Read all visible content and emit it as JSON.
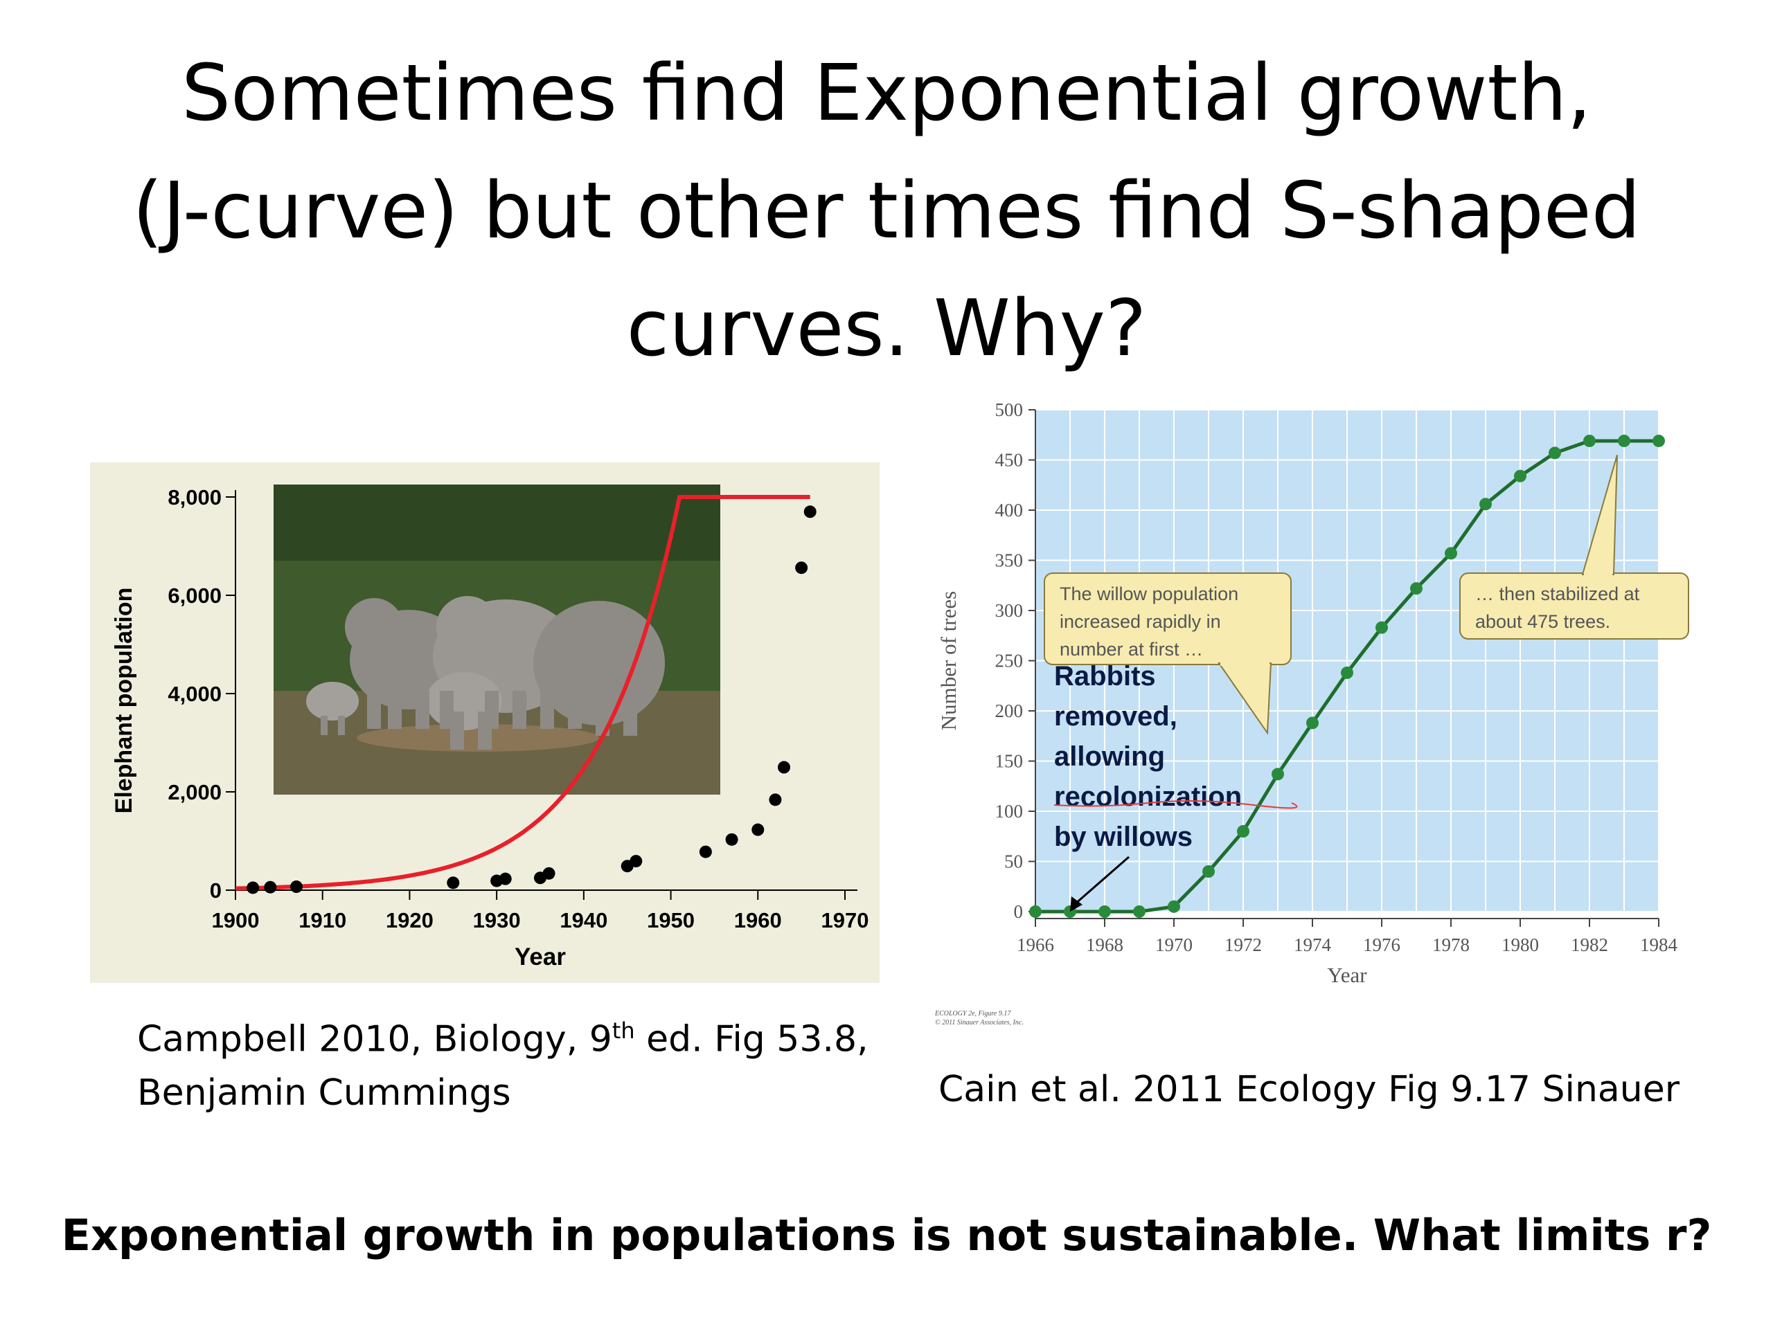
{
  "slide": {
    "title_lines": [
      "Sometimes find Exponential growth,",
      "(J-curve) but other times find S-shaped",
      "curves. Why?"
    ],
    "caption_left": {
      "line1_pre": "Campbell 2010, Biology, 9",
      "line1_sup": "th",
      "line1_post": " ed. Fig 53.8,",
      "line2": "Benjamin Cummings"
    },
    "caption_right": "Cain et al. 2011 Ecology Fig 9.17 Sinauer",
    "figure_credit_lines": [
      "ECOLOGY 2e, Figure 9.17",
      "© 2011 Sinauer Associates, Inc."
    ],
    "conclusion": "Exponential growth in populations is not sustainable.  What limits r?",
    "photo_description": "elephant-herd-photo"
  },
  "chart_data": [
    {
      "type": "scatter",
      "xlabel": "Year",
      "ylabel": "Elephant population",
      "xlim": [
        1900,
        1970
      ],
      "ylim": [
        0,
        8000
      ],
      "x_ticks": [
        "1900",
        "1910",
        "1920",
        "1930",
        "1940",
        "1950",
        "1960",
        "1970"
      ],
      "y_ticks": [
        "0",
        "2,000",
        "4,000",
        "6,000",
        "8,000"
      ],
      "series": [
        {
          "points": [
            [
              1902,
              50
            ],
            [
              1904,
              60
            ],
            [
              1907,
              70
            ],
            [
              1925,
              150
            ],
            [
              1930,
              190
            ],
            [
              1931,
              230
            ],
            [
              1935,
              250
            ],
            [
              1936,
              340
            ],
            [
              1945,
              490
            ],
            [
              1946,
              590
            ],
            [
              1954,
              780
            ],
            [
              1957,
              1030
            ],
            [
              1960,
              1230
            ],
            [
              1962,
              1840
            ],
            [
              1963,
              2500
            ],
            [
              1965,
              6560
            ],
            [
              1966,
              7700
            ]
          ]
        }
      ],
      "fit_curve_color": "#e8202a",
      "point_color": "#000000",
      "background_color": "#efeedd",
      "grid": false,
      "inset_photo": true
    },
    {
      "type": "line",
      "xlabel": "Year",
      "ylabel": "Number of trees",
      "xlim": [
        1966,
        1984
      ],
      "ylim": [
        0,
        500
      ],
      "x_ticks": [
        "1966",
        "1968",
        "1970",
        "1972",
        "1974",
        "1976",
        "1978",
        "1980",
        "1982",
        "1984"
      ],
      "y_ticks": [
        "0",
        "50",
        "100",
        "150",
        "200",
        "250",
        "300",
        "350",
        "400",
        "450",
        "500"
      ],
      "series": [
        {
          "x": [
            1966,
            1967,
            1968,
            1969,
            1970,
            1971,
            1972,
            1973,
            1974,
            1975,
            1976,
            1977,
            1978,
            1979,
            1980,
            1981,
            1982,
            1983,
            1984
          ],
          "y": [
            0,
            0,
            0,
            0,
            5,
            40,
            80,
            137,
            188,
            238,
            283,
            322,
            357,
            406,
            434,
            457,
            469,
            469,
            469
          ]
        }
      ],
      "line_color": "#1d6e2e",
      "point_color": "#2a8a3c",
      "background_color": "#c4e0f4",
      "grid": true,
      "callouts": [
        "The willow population increased rapidly in number at first …",
        "… then stabilized at about 475 trees."
      ],
      "callout_lines": [
        [
          "The willow population",
          "increased rapidly in",
          "number at first …"
        ],
        [
          "… then stabilized at",
          "about 475 trees."
        ]
      ],
      "annotation": "Rabbits removed, allowing recolonization by willows",
      "annotation_lines": [
        "Rabbits",
        "removed,",
        "allowing",
        "recolonization",
        "by willows"
      ]
    }
  ]
}
